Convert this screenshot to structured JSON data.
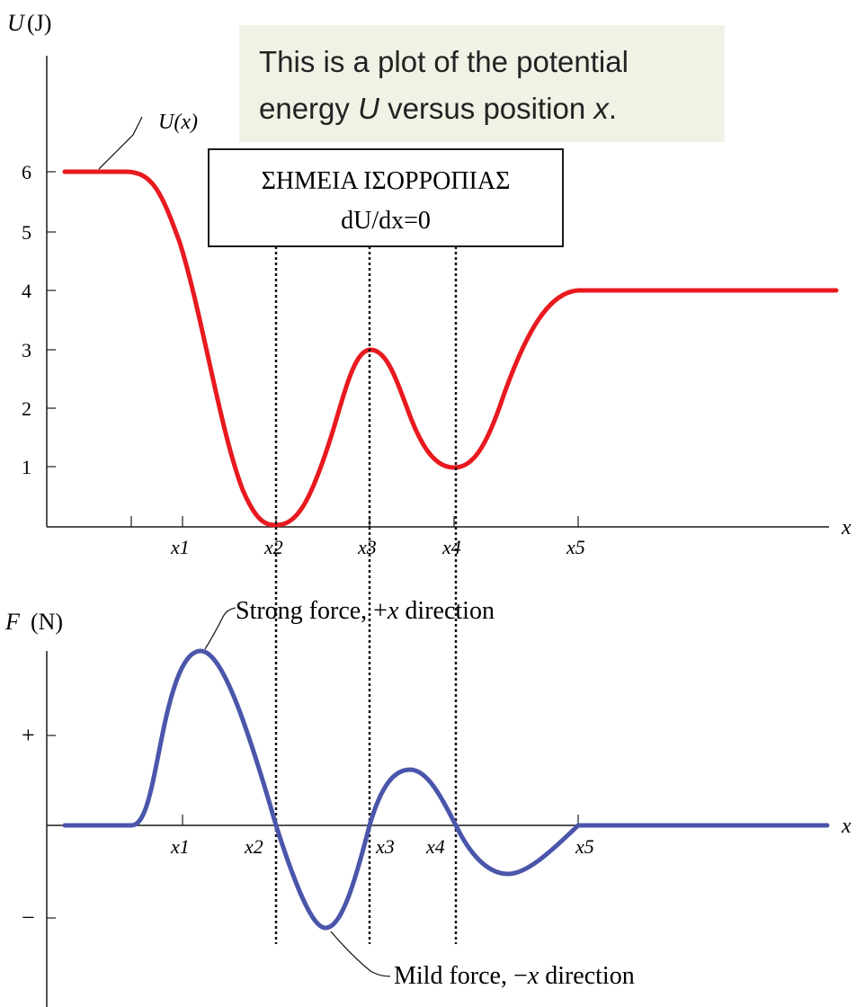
{
  "colors": {
    "potential_curve": "#e8191f",
    "force_curve": "#4a56aa",
    "callout_bg": "#eff3e6",
    "axis": "#1a1a1a"
  },
  "chart_data": [
    {
      "type": "line",
      "name": "potential-energy",
      "ylabel_symbol": "U",
      "ylabel_unit": "(J)",
      "xlabel": "x",
      "curve_label": "U(x)",
      "y_ticks": [
        "1",
        "2",
        "3",
        "4",
        "5",
        "6"
      ],
      "ylim": [
        0,
        7
      ],
      "x_ticks": [
        "x1",
        "x2",
        "x3",
        "x4",
        "x5"
      ],
      "key_points": [
        {
          "x": "x2",
          "y": 0
        },
        {
          "x": "x3",
          "y": 3
        },
        {
          "x": "x4",
          "y": 1
        },
        {
          "x": "x5",
          "y": 4
        }
      ],
      "left_plateau": 6,
      "right_plateau": 4,
      "annotation": {
        "line1": "This is a plot of the potential",
        "line2_pre": "energy ",
        "line2_u": "U",
        "line2_mid": " versus position ",
        "line2_x": "x",
        "line2_post": "."
      },
      "equilibrium_box": {
        "line1": "ΣΗΜΕΙΑ ΙΣΟΡΡΟΠΙΑΣ",
        "line2": "dU/dx=0"
      }
    },
    {
      "type": "line",
      "name": "force",
      "ylabel_symbol": "F",
      "ylabel_unit": "(N)",
      "xlabel": "x",
      "y_ticks": [
        "+",
        "−"
      ],
      "x_ticks": [
        "x1",
        "x2",
        "x3",
        "x4",
        "x5"
      ],
      "zero_crossings": [
        "x2",
        "x3",
        "x4"
      ],
      "annotations": {
        "strong": {
          "pre": "Strong force, +",
          "var": "x",
          "post": " direction"
        },
        "mild": {
          "pre": "Mild force, −",
          "var": "x",
          "post": " direction"
        }
      }
    }
  ]
}
